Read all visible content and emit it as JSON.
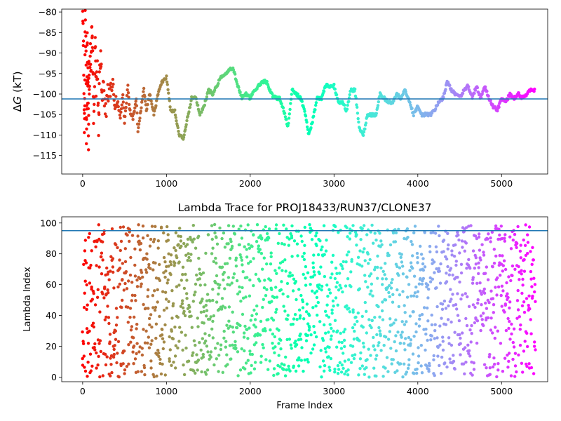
{
  "chart_data": [
    {
      "type": "scatter",
      "title": "",
      "xlabel": "",
      "ylabel_prefix": "Δ",
      "ylabel_symbol": "G",
      "ylabel_suffix": " (kT)",
      "xlim": [
        -250,
        5550
      ],
      "ylim": [
        -119.5,
        -79.3
      ],
      "x_ticks": [
        0,
        1000,
        2000,
        3000,
        4000,
        5000
      ],
      "y_ticks": [
        -115,
        -110,
        -105,
        -100,
        -95,
        -90,
        -85,
        -80
      ],
      "reference_line": -101.2,
      "reference_color": "#1f77b4",
      "colormap": "rainbow (red at frame 0 → violet at last frame)",
      "grid": false,
      "points": [
        [
          0,
          -80
        ],
        [
          10,
          -90
        ],
        [
          20,
          -110
        ],
        [
          25,
          -100
        ],
        [
          30,
          -82
        ],
        [
          40,
          -90
        ],
        [
          45,
          -110
        ],
        [
          50,
          -103
        ],
        [
          55,
          -85
        ],
        [
          60,
          -100
        ],
        [
          65,
          -95
        ],
        [
          70,
          -113
        ],
        [
          75,
          -92
        ],
        [
          80,
          -101
        ],
        [
          90,
          -88
        ],
        [
          100,
          -96
        ],
        [
          110,
          -82
        ],
        [
          120,
          -90
        ],
        [
          130,
          -105
        ],
        [
          140,
          -98
        ],
        [
          150,
          -88
        ],
        [
          160,
          -100
        ],
        [
          175,
          -92
        ],
        [
          190,
          -108
        ],
        [
          200,
          -97
        ],
        [
          215,
          -90
        ],
        [
          230,
          -101
        ],
        [
          250,
          -97
        ],
        [
          270,
          -106
        ],
        [
          300,
          -99
        ],
        [
          330,
          -101
        ],
        [
          360,
          -96
        ],
        [
          380,
          -104
        ],
        [
          420,
          -102
        ],
        [
          450,
          -106
        ],
        [
          480,
          -100
        ],
        [
          500,
          -107
        ],
        [
          540,
          -98
        ],
        [
          560,
          -104
        ],
        [
          600,
          -106
        ],
        [
          640,
          -101
        ],
        [
          660,
          -109
        ],
        [
          700,
          -103
        ],
        [
          730,
          -99
        ],
        [
          760,
          -104
        ],
        [
          800,
          -100
        ],
        [
          850,
          -105
        ],
        [
          900,
          -100
        ],
        [
          950,
          -97
        ],
        [
          1000,
          -96
        ],
        [
          1050,
          -104
        ],
        [
          1100,
          -104
        ],
        [
          1150,
          -110
        ],
        [
          1200,
          -111
        ],
        [
          1250,
          -106
        ],
        [
          1300,
          -101
        ],
        [
          1350,
          -101
        ],
        [
          1400,
          -105
        ],
        [
          1450,
          -103
        ],
        [
          1500,
          -99
        ],
        [
          1550,
          -100
        ],
        [
          1600,
          -98
        ],
        [
          1650,
          -96
        ],
        [
          1700,
          -95
        ],
        [
          1750,
          -94
        ],
        [
          1800,
          -94
        ],
        [
          1850,
          -98
        ],
        [
          1900,
          -101
        ],
        [
          1950,
          -100
        ],
        [
          2000,
          -101
        ],
        [
          2050,
          -99
        ],
        [
          2100,
          -98
        ],
        [
          2150,
          -97
        ],
        [
          2200,
          -97
        ],
        [
          2250,
          -100
        ],
        [
          2300,
          -101
        ],
        [
          2350,
          -101
        ],
        [
          2400,
          -104
        ],
        [
          2450,
          -108
        ],
        [
          2500,
          -99
        ],
        [
          2550,
          -100
        ],
        [
          2600,
          -101
        ],
        [
          2650,
          -104
        ],
        [
          2700,
          -110
        ],
        [
          2750,
          -106
        ],
        [
          2800,
          -101
        ],
        [
          2850,
          -101
        ],
        [
          2900,
          -98
        ],
        [
          2950,
          -98
        ],
        [
          3000,
          -98
        ],
        [
          3050,
          -102
        ],
        [
          3100,
          -102
        ],
        [
          3150,
          -104
        ],
        [
          3200,
          -99
        ],
        [
          3250,
          -99
        ],
        [
          3300,
          -108
        ],
        [
          3350,
          -110
        ],
        [
          3400,
          -105
        ],
        [
          3450,
          -105
        ],
        [
          3500,
          -105
        ],
        [
          3550,
          -100
        ],
        [
          3600,
          -101
        ],
        [
          3650,
          -102
        ],
        [
          3700,
          -102
        ],
        [
          3750,
          -100
        ],
        [
          3800,
          -101
        ],
        [
          3850,
          -99
        ],
        [
          3900,
          -102
        ],
        [
          3950,
          -105
        ],
        [
          4000,
          -103
        ],
        [
          4050,
          -105
        ],
        [
          4100,
          -105
        ],
        [
          4150,
          -105
        ],
        [
          4200,
          -104
        ],
        [
          4250,
          -102
        ],
        [
          4300,
          -101
        ],
        [
          4350,
          -97
        ],
        [
          4400,
          -99
        ],
        [
          4450,
          -100
        ],
        [
          4500,
          -101
        ],
        [
          4550,
          -99
        ],
        [
          4600,
          -98
        ],
        [
          4650,
          -101
        ],
        [
          4700,
          -98
        ],
        [
          4750,
          -101
        ],
        [
          4800,
          -98
        ],
        [
          4850,
          -101
        ],
        [
          4900,
          -103
        ],
        [
          4950,
          -104
        ],
        [
          5000,
          -101
        ],
        [
          5050,
          -102
        ],
        [
          5100,
          -100
        ],
        [
          5150,
          -101
        ],
        [
          5200,
          -100
        ],
        [
          5250,
          -101
        ],
        [
          5300,
          -100
        ],
        [
          5350,
          -99
        ],
        [
          5400,
          -99
        ]
      ]
    },
    {
      "type": "scatter",
      "title": "Lambda Trace for PROJ18433/RUN37/CLONE37",
      "xlabel": "Frame Index",
      "ylabel": "Lambda Index",
      "xlim": [
        -250,
        5550
      ],
      "ylim": [
        -3,
        104
      ],
      "x_ticks": [
        0,
        1000,
        2000,
        3000,
        4000,
        5000
      ],
      "y_ticks": [
        0,
        20,
        40,
        60,
        80,
        100
      ],
      "reference_line": 95,
      "reference_color": "#1f77b4",
      "colormap": "rainbow (red at frame 0 → violet at last frame)",
      "grid": false,
      "x_range": [
        0,
        5400
      ],
      "y_range": [
        0,
        99
      ]
    }
  ]
}
